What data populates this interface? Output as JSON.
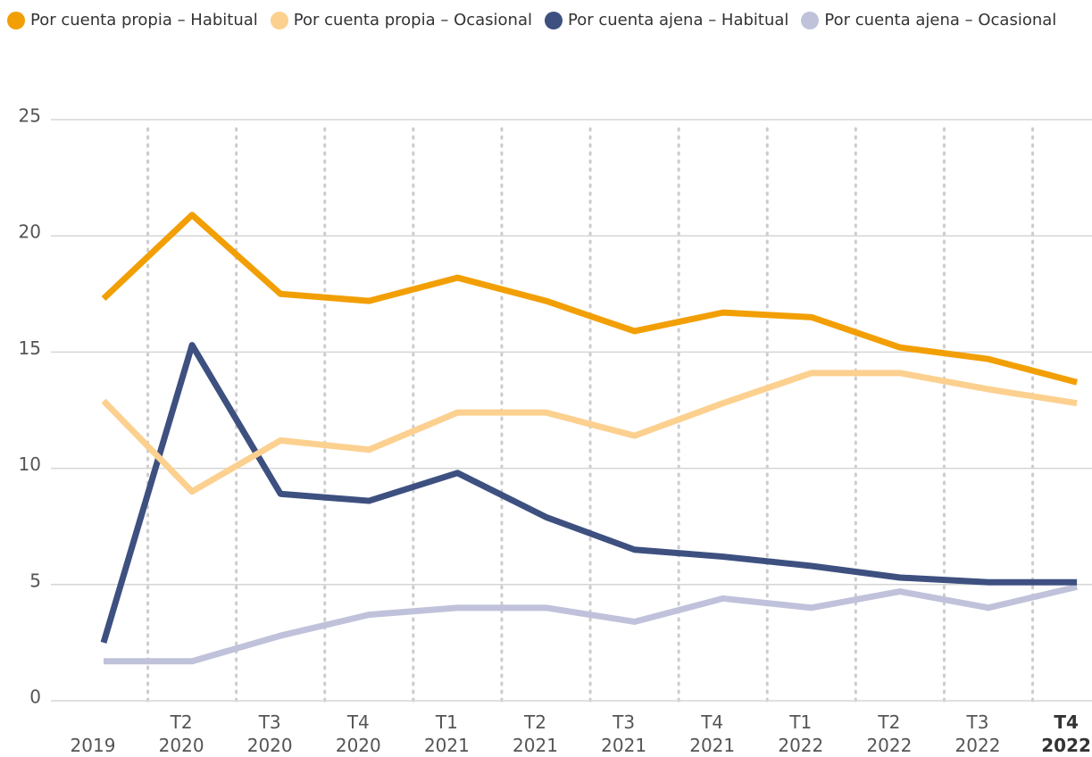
{
  "chart_data": {
    "type": "line",
    "categories": [
      "2019",
      "T2 2020",
      "T3 2020",
      "T4 2020",
      "T1 2021",
      "T2 2021",
      "T3 2021",
      "T4 2021",
      "T1 2022",
      "T2 2022",
      "T3 2022",
      "T4 2022"
    ],
    "series": [
      {
        "name": "Por cuenta propia – Habitual",
        "color": "#f29f05",
        "values": [
          17.3,
          20.9,
          17.5,
          17.2,
          18.2,
          17.2,
          15.9,
          16.7,
          16.5,
          15.2,
          14.7,
          13.7
        ]
      },
      {
        "name": "Por cuenta propia – Ocasional",
        "color": "#fcd08f",
        "values": [
          12.9,
          9.0,
          11.2,
          10.8,
          12.4,
          12.4,
          11.4,
          12.8,
          14.1,
          14.1,
          13.4,
          12.8
        ]
      },
      {
        "name": "Por cuenta ajena – Habitual",
        "color": "#3d5080",
        "values": [
          2.5,
          15.3,
          8.9,
          8.6,
          9.8,
          7.9,
          6.5,
          6.2,
          5.8,
          5.3,
          5.1,
          5.1
        ]
      },
      {
        "name": "Por cuenta ajena – Ocasional",
        "color": "#bfc2da",
        "values": [
          1.7,
          1.7,
          2.8,
          3.7,
          4.0,
          4.0,
          3.4,
          4.4,
          4.0,
          4.7,
          4.0,
          4.9
        ]
      }
    ],
    "ylim": [
      0,
      25
    ],
    "yticks": [
      0,
      5,
      10,
      15,
      20,
      25
    ],
    "grid": true
  }
}
